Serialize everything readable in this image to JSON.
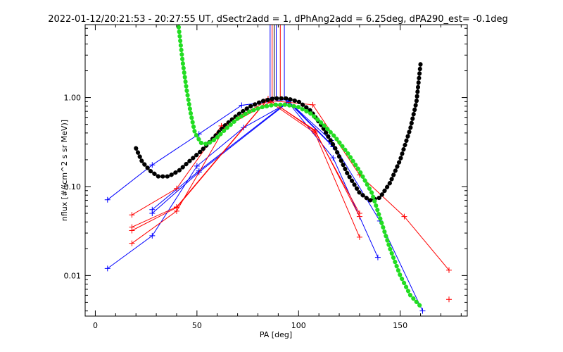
{
  "chart_data": {
    "type": "scatter",
    "title": "2022-01-12/20:21:53 - 20:27:55 UT, dSectr2add = 1, dPhAng2add = 6.25deg, dPA290_est=  -0.1deg",
    "xlabel": "PA [deg]",
    "ylabel": "nflux [#/(cm^2 s sr MeV)]",
    "x_ticks": [
      "0",
      "50",
      "100",
      "150"
    ],
    "y_ticks": [
      "0.01",
      "0.10",
      "1.00"
    ],
    "xlim": [
      -5,
      183
    ],
    "ylim": [
      0.0035,
      6.6
    ],
    "y_scale": "log",
    "grid": false,
    "series": [
      {
        "color": "#0000ff",
        "style": "line+plus",
        "lines": [
          [
            [
              6,
              0.071
            ],
            [
              28,
              0.175
            ],
            [
              51,
              0.39
            ],
            [
              72,
              0.82
            ],
            [
              94,
              0.95
            ],
            [
              116,
              0.33
            ],
            [
              140,
              0.041
            ],
            [
              161,
              0.004
            ]
          ],
          [
            [
              6,
              0.012
            ],
            [
              28,
              0.028
            ],
            [
              50,
              0.17
            ],
            [
              73,
              0.46
            ],
            [
              95,
              0.88
            ],
            [
              117,
              0.21
            ],
            [
              139,
              0.016
            ]
          ],
          [
            [
              28,
              0.055
            ],
            [
              51,
              0.15
            ],
            [
              95,
              0.91
            ],
            [
              116,
              0.3
            ]
          ],
          [
            [
              28,
              0.05
            ],
            [
              51,
              0.145
            ],
            [
              95,
              0.89
            ],
            [
              117,
              0.28
            ]
          ]
        ]
      },
      {
        "color": "#ff0000",
        "style": "line+plus",
        "lines": [
          [
            [
              18,
              0.048
            ],
            [
              40,
              0.095
            ],
            [
              62,
              0.48
            ],
            [
              85,
              0.93
            ],
            [
              107,
              0.83
            ],
            [
              130,
              0.135
            ],
            [
              152,
              0.046
            ],
            [
              174,
              0.0115
            ]
          ],
          [
            [
              18,
              0.023
            ],
            [
              40,
              0.053
            ],
            [
              64,
              0.47
            ],
            [
              86,
              0.89
            ],
            [
              108,
              0.4
            ],
            [
              130,
              0.027
            ]
          ],
          [
            [
              18,
              0.035
            ],
            [
              40,
              0.059
            ],
            [
              85,
              0.97
            ],
            [
              108,
              0.42
            ],
            [
              130,
              0.05
            ]
          ],
          [
            [
              18,
              0.032
            ],
            [
              40,
              0.058
            ],
            [
              85,
              0.96
            ],
            [
              108,
              0.43
            ],
            [
              130,
              0.046
            ]
          ]
        ],
        "points": [
          [
            174,
            0.0054
          ]
        ]
      },
      {
        "color": "#000000",
        "style": "thick-dotted",
        "points": [
          [
            20,
            0.27
          ],
          [
            23,
            0.19
          ],
          [
            27,
            0.15
          ],
          [
            31,
            0.13
          ],
          [
            36,
            0.13
          ],
          [
            41,
            0.15
          ],
          [
            46,
            0.19
          ],
          [
            52,
            0.25
          ],
          [
            58,
            0.35
          ],
          [
            64,
            0.49
          ],
          [
            70,
            0.64
          ],
          [
            76,
            0.79
          ],
          [
            82,
            0.91
          ],
          [
            88,
            0.98
          ],
          [
            94,
            0.98
          ],
          [
            100,
            0.9
          ],
          [
            106,
            0.71
          ],
          [
            112,
            0.46
          ],
          [
            118,
            0.27
          ],
          [
            124,
            0.14
          ],
          [
            130,
            0.085
          ],
          [
            135,
            0.07
          ],
          [
            140,
            0.075
          ],
          [
            145,
            0.11
          ],
          [
            150,
            0.2
          ],
          [
            155,
            0.45
          ],
          [
            158,
            0.9
          ],
          [
            160,
            2.4
          ]
        ]
      },
      {
        "color": "#22dd22",
        "style": "thick-dotted",
        "points": [
          [
            41,
            6.2
          ],
          [
            43,
            2.5
          ],
          [
            45,
            1.2
          ],
          [
            47,
            0.65
          ],
          [
            49,
            0.4
          ],
          [
            52,
            0.31
          ],
          [
            55,
            0.3
          ],
          [
            59,
            0.34
          ],
          [
            64,
            0.44
          ],
          [
            70,
            0.58
          ],
          [
            76,
            0.7
          ],
          [
            82,
            0.78
          ],
          [
            88,
            0.83
          ],
          [
            94,
            0.83
          ],
          [
            100,
            0.78
          ],
          [
            106,
            0.66
          ],
          [
            112,
            0.5
          ],
          [
            118,
            0.36
          ],
          [
            124,
            0.24
          ],
          [
            130,
            0.15
          ],
          [
            136,
            0.085
          ],
          [
            140,
            0.045
          ],
          [
            145,
            0.02
          ],
          [
            150,
            0.01
          ],
          [
            155,
            0.006
          ],
          [
            160,
            0.0045
          ]
        ]
      }
    ],
    "vertical_markers": [
      {
        "color": "#0000ff",
        "x": 86
      },
      {
        "color": "#ff0000",
        "x": 87
      },
      {
        "color": "#000000",
        "x": 88
      },
      {
        "color": "#0000ff",
        "x": 89
      },
      {
        "color": "#ff0000",
        "x": 91
      },
      {
        "color": "#0000ff",
        "x": 93
      }
    ]
  }
}
